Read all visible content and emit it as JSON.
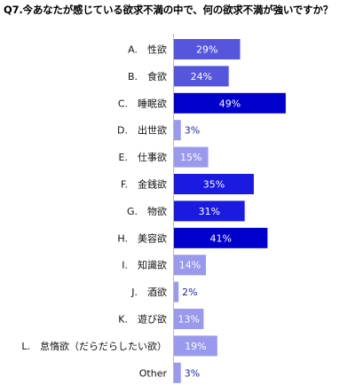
{
  "chart_data": {
    "type": "bar",
    "orientation": "horizontal",
    "title": "Q7.今あなたが感じている欲求不満の中で、何の欲求不満が強いですか？",
    "categories": [
      "A.　性欲",
      "B.　食欲",
      "C.　睡眠欲",
      "D.　出世欲",
      "E.　仕事欲",
      "F.　金銭欲",
      "G.　物欲",
      "H.　美容欲",
      "I.　知識欲",
      "J.　酒欲",
      "K.　遊び欲",
      "L.　怠惰欲（だらだらしたい欲）",
      "Other"
    ],
    "values": [
      29,
      24,
      49,
      3,
      15,
      35,
      31,
      41,
      14,
      2,
      13,
      19,
      3
    ],
    "value_labels": [
      "29%",
      "24%",
      "49%",
      "3%",
      "15%",
      "35%",
      "31%",
      "41%",
      "14%",
      "2%",
      "13%",
      "19%",
      "3%"
    ],
    "xlim": [
      0,
      100
    ],
    "grid": false,
    "legend": "none",
    "colors": {
      "low": "#9999ee",
      "mid": "#5555dd",
      "high": "#1a1ae0",
      "top": "#0000cc"
    }
  }
}
